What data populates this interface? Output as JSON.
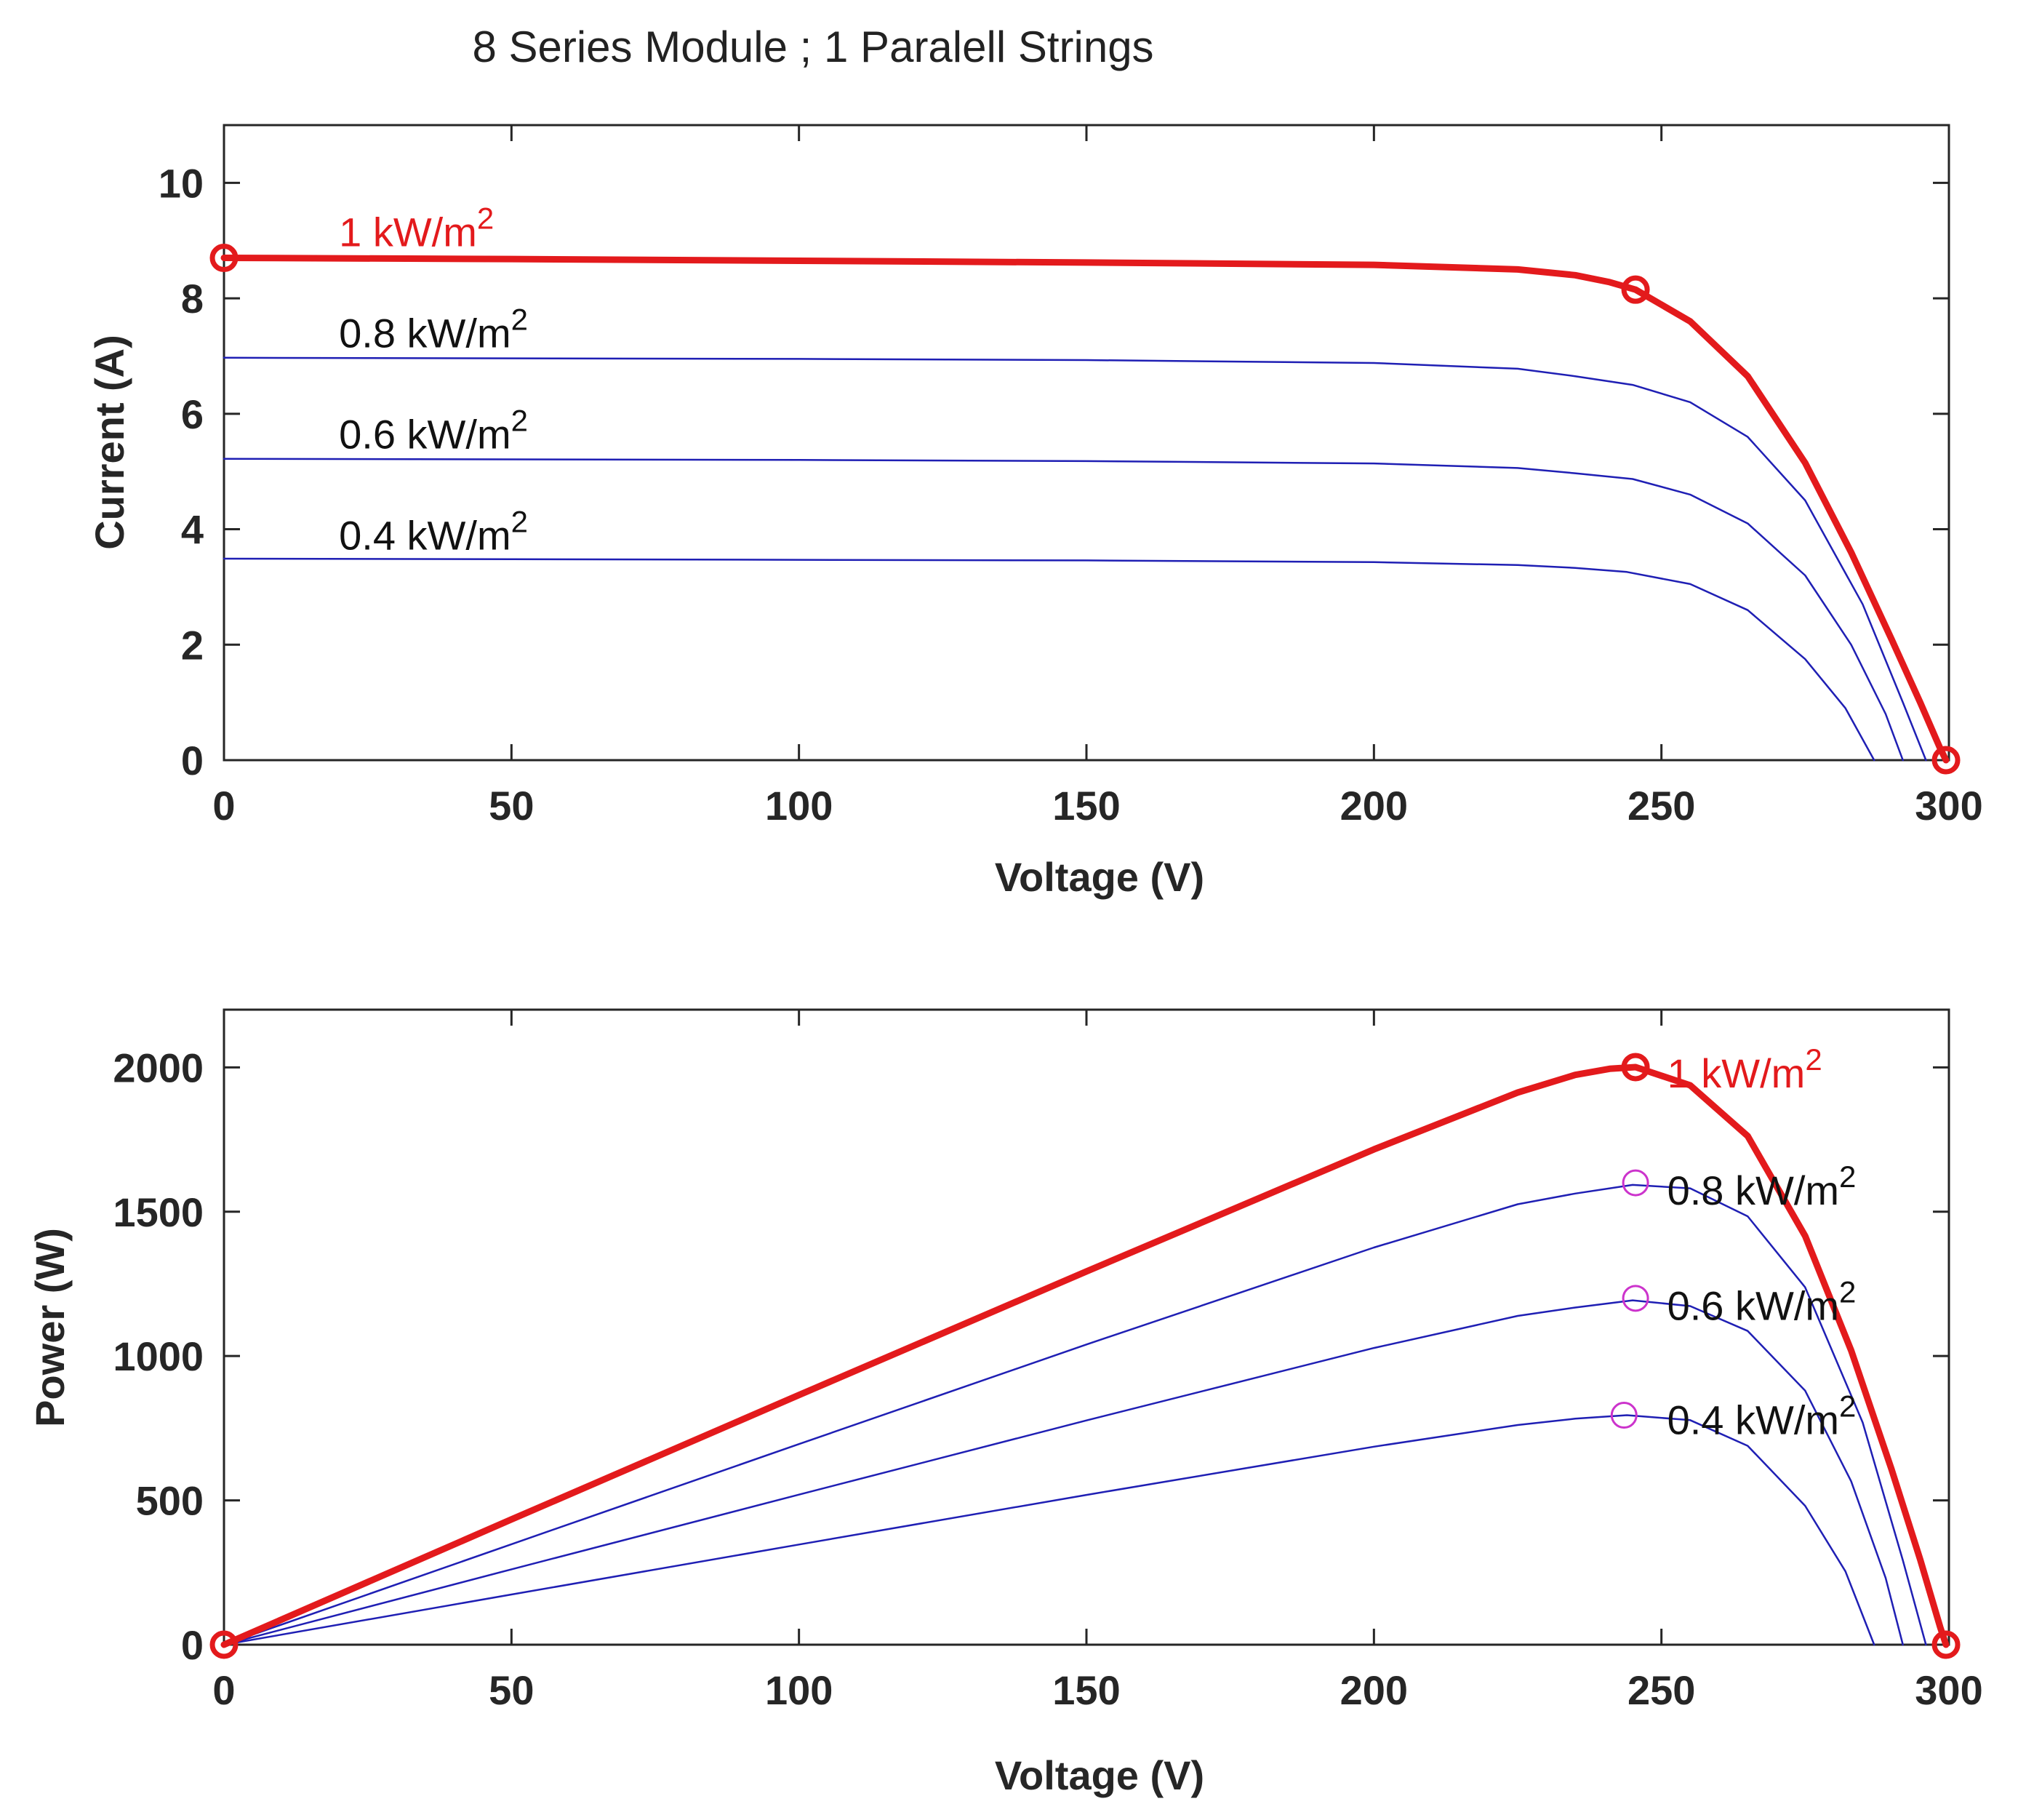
{
  "chart_data": {
    "title": "8 Series Module ; 1 Paralell Strings",
    "colors": {
      "strong": "#e31a1c",
      "weak": "#1f1fb4",
      "mpp_marker": "#cc33cc",
      "axes": "#262626"
    },
    "charts": [
      {
        "id": "iv",
        "type": "line",
        "xlabel": "Voltage (V)",
        "ylabel": "Current (A)",
        "xlim": [
          0,
          300
        ],
        "ylim": [
          0,
          11
        ],
        "xticks": [
          "0",
          "50",
          "100",
          "150",
          "200",
          "250",
          "300"
        ],
        "yticks": [
          "0",
          "2",
          "4",
          "6",
          "8",
          "10"
        ],
        "grid": false,
        "series": [
          {
            "name": "1 kW/m²",
            "label_main": "1 kW/m",
            "label_sup": "2",
            "style": "strong",
            "x": [
              0,
              50,
              100,
              150,
              200,
              225,
              235,
              241,
              245.5,
              255,
              265,
              275,
              283,
              290,
              295,
              298.5,
              299.5
            ],
            "y": [
              8.7,
              8.68,
              8.65,
              8.62,
              8.58,
              8.5,
              8.4,
              8.28,
              8.15,
              7.6,
              6.65,
              5.15,
              3.6,
              2.1,
              1.0,
              0.2,
              0
            ],
            "markers": [
              {
                "x": 0,
                "y": 8.7
              },
              {
                "x": 245.5,
                "y": 8.15
              },
              {
                "x": 299.5,
                "y": 0
              }
            ]
          },
          {
            "name": "0.8 kW/m²",
            "label_main": "0.8 kW/m",
            "label_sup": "2",
            "style": "weak",
            "x": [
              0,
              50,
              100,
              150,
              200,
              225,
              235,
              245,
              255,
              265,
              275,
              285,
              292,
              296
            ],
            "y": [
              6.97,
              6.96,
              6.95,
              6.93,
              6.88,
              6.78,
              6.65,
              6.5,
              6.2,
              5.6,
              4.5,
              2.7,
              1.0,
              0
            ],
            "markers": []
          },
          {
            "name": "0.6 kW/m²",
            "label_main": "0.6 kW/m",
            "label_sup": "2",
            "style": "weak",
            "x": [
              0,
              50,
              100,
              150,
              200,
              225,
              235,
              245,
              255,
              265,
              275,
              283,
              289,
              292
            ],
            "y": [
              5.22,
              5.21,
              5.2,
              5.18,
              5.14,
              5.06,
              4.97,
              4.87,
              4.6,
              4.1,
              3.2,
              2.0,
              0.8,
              0
            ],
            "markers": []
          },
          {
            "name": "0.4 kW/m²",
            "label_main": "0.4 kW/m",
            "label_sup": "2",
            "style": "weak",
            "x": [
              0,
              50,
              100,
              150,
              200,
              225,
              235,
              244,
              255,
              265,
              275,
              282,
              287
            ],
            "y": [
              3.49,
              3.48,
              3.47,
              3.46,
              3.43,
              3.38,
              3.33,
              3.26,
              3.05,
              2.6,
              1.75,
              0.9,
              0
            ],
            "markers": []
          }
        ],
        "annotations": [
          {
            "series": 0,
            "x": 20,
            "y": 8.9
          },
          {
            "series": 1,
            "x": 20,
            "y": 7.15
          },
          {
            "series": 2,
            "x": 20,
            "y": 5.4
          },
          {
            "series": 3,
            "x": 20,
            "y": 3.65
          }
        ]
      },
      {
        "id": "pv",
        "type": "line",
        "xlabel": "Voltage (V)",
        "ylabel": "Power (W)",
        "xlim": [
          0,
          300
        ],
        "ylim": [
          0,
          2200
        ],
        "xticks": [
          "0",
          "50",
          "100",
          "150",
          "200",
          "250",
          "300"
        ],
        "yticks": [
          "0",
          "500",
          "1000",
          "1500",
          "2000"
        ],
        "grid": false,
        "series": [
          {
            "name": "1 kW/m²",
            "label_main": "1 kW/m",
            "label_sup": "2",
            "style": "strong",
            "x": [
              0,
              50,
              100,
              150,
              200,
              225,
              235,
              241,
              245.5,
              255,
              265,
              275,
              283,
              290,
              295,
              298.5,
              299.5
            ],
            "y": [
              0,
              434,
              865,
              1293,
              1716,
              1913,
              1974,
              1995,
              2001,
              1938,
              1762,
              1416,
              1019,
              609,
              295,
              60,
              0
            ],
            "markers": [
              {
                "x": 0,
                "y": 0
              },
              {
                "x": 245.5,
                "y": 2001
              },
              {
                "x": 299.5,
                "y": 0
              }
            ]
          },
          {
            "name": "0.8 kW/m²",
            "label_main": "0.8 kW/m",
            "label_sup": "2",
            "style": "weak",
            "x": [
              0,
              50,
              100,
              150,
              200,
              225,
              235,
              245,
              255,
              265,
              275,
              285,
              292,
              296
            ],
            "y": [
              0,
              348,
              695,
              1040,
              1376,
              1526,
              1563,
              1593,
              1581,
              1484,
              1238,
              770,
              292,
              0
            ],
            "markers": [
              {
                "x": 245.5,
                "y": 1600
              }
            ]
          },
          {
            "name": "0.6 kW/m²",
            "label_main": "0.6 kW/m",
            "label_sup": "2",
            "style": "weak",
            "x": [
              0,
              50,
              100,
              150,
              200,
              225,
              235,
              245,
              255,
              265,
              275,
              283,
              289,
              292
            ],
            "y": [
              0,
              261,
              520,
              777,
              1028,
              1139,
              1168,
              1193,
              1173,
              1087,
              880,
              566,
              231,
              0
            ],
            "markers": [
              {
                "x": 245.5,
                "y": 1200
              }
            ]
          },
          {
            "name": "0.4 kW/m²",
            "label_main": "0.4 kW/m",
            "label_sup": "2",
            "style": "weak",
            "x": [
              0,
              50,
              100,
              150,
              200,
              225,
              235,
              244,
              255,
              265,
              275,
              282,
              287
            ],
            "y": [
              0,
              174,
              347,
              519,
              686,
              761,
              783,
              795,
              778,
              689,
              481,
              254,
              0
            ],
            "markers": [
              {
                "x": 243.5,
                "y": 795
              }
            ]
          }
        ],
        "annotations": [
          {
            "series": 0,
            "x": 251,
            "y": 1930
          },
          {
            "series": 1,
            "x": 251,
            "y": 1525
          },
          {
            "series": 2,
            "x": 251,
            "y": 1125
          },
          {
            "series": 3,
            "x": 251,
            "y": 730
          }
        ]
      }
    ]
  }
}
